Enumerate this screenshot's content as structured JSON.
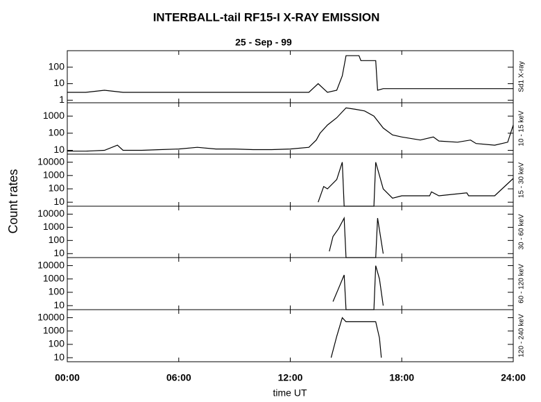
{
  "chart_data": [
    {
      "type": "line",
      "title": "INTERBALL-tail  RF15-I   X-RAY  EMISSION",
      "subtitle": "25 - Sep - 99",
      "ylabel": "Count  rates",
      "panel_label": "Sd1  X-ray",
      "log_scale": true,
      "color": "#000000",
      "xlim": [
        0,
        24
      ],
      "ylim": [
        0.7,
        1000
      ],
      "yticks": [
        1,
        10,
        100
      ],
      "x": [
        0,
        1,
        2,
        3,
        4,
        5,
        6,
        7,
        8,
        9,
        10,
        11,
        12,
        13,
        13.5,
        14,
        14.5,
        14.8,
        15.0,
        15.7,
        15.8,
        16.6,
        16.7,
        17,
        18,
        19,
        20,
        21,
        22,
        23,
        24
      ],
      "values": [
        3,
        3,
        4,
        3,
        3,
        3,
        3,
        3,
        3,
        3,
        3,
        3,
        3,
        3,
        10,
        3,
        4,
        30,
        500,
        500,
        250,
        250,
        4,
        5,
        5,
        5,
        5,
        5,
        5,
        5,
        5
      ]
    },
    {
      "type": "line",
      "panel_label": "10 - 15 keV",
      "log_scale": true,
      "color": "#000000",
      "xlim": [
        0,
        24
      ],
      "ylim": [
        6,
        6000
      ],
      "yticks": [
        10,
        100,
        1000
      ],
      "x": [
        0,
        1,
        2,
        2.7,
        3,
        4,
        5,
        6,
        7,
        8,
        9,
        10,
        11,
        12,
        13,
        13.4,
        13.6,
        14,
        14.5,
        15,
        15.5,
        16,
        16.5,
        17,
        17.5,
        18,
        19,
        19.7,
        20,
        21,
        21.7,
        22,
        23,
        23.7,
        24
      ],
      "values": [
        9,
        9,
        10,
        20,
        10,
        10,
        11,
        12,
        15,
        12,
        12,
        11,
        11,
        12,
        15,
        40,
        100,
        300,
        800,
        3000,
        2500,
        2000,
        1000,
        200,
        80,
        60,
        40,
        60,
        35,
        30,
        40,
        25,
        20,
        30,
        300
      ]
    },
    {
      "type": "line",
      "panel_label": "15 - 30 keV",
      "log_scale": true,
      "color": "#000000",
      "xlim": [
        0,
        24
      ],
      "ylim": [
        5,
        40000
      ],
      "yticks": [
        10,
        100,
        1000,
        10000
      ],
      "x": [
        13.5,
        13.8,
        14,
        14.5,
        14.8,
        14.9,
        16.5,
        16.6,
        17,
        17.5,
        18,
        19.5,
        19.6,
        20,
        21.5,
        21.6,
        23,
        24
      ],
      "values": [
        10,
        150,
        100,
        500,
        10000,
        5,
        5,
        10000,
        100,
        20,
        30,
        30,
        60,
        30,
        50,
        30,
        30,
        600
      ]
    },
    {
      "type": "line",
      "panel_label": "30 - 60 keV",
      "log_scale": true,
      "color": "#000000",
      "xlim": [
        0,
        24
      ],
      "ylim": [
        5,
        40000
      ],
      "yticks": [
        10,
        100,
        1000,
        10000
      ],
      "x": [
        14.1,
        14.3,
        14.6,
        14.9,
        15.0,
        16.6,
        16.7,
        17.0
      ],
      "values": [
        15,
        200,
        800,
        5000,
        5,
        5,
        5000,
        10
      ]
    },
    {
      "type": "line",
      "panel_label": "60 - 120 keV",
      "log_scale": true,
      "color": "#000000",
      "xlim": [
        0,
        24
      ],
      "ylim": [
        5,
        40000
      ],
      "yticks": [
        10,
        100,
        1000,
        10000
      ],
      "x": [
        14.3,
        14.6,
        14.9,
        15.0,
        16.5,
        16.6,
        16.8,
        17.0
      ],
      "values": [
        20,
        200,
        2000,
        5,
        5,
        10000,
        1000,
        10
      ]
    },
    {
      "type": "line",
      "panel_label": "120 - 240 keV",
      "log_scale": true,
      "color": "#000000",
      "xlim": [
        0,
        24
      ],
      "ylim": [
        5,
        40000
      ],
      "yticks": [
        10,
        100,
        1000,
        10000
      ],
      "x": [
        14.2,
        14.5,
        14.8,
        15.0,
        16.6,
        16.8,
        16.9
      ],
      "values": [
        10,
        400,
        10000,
        5000,
        5000,
        300,
        10
      ],
      "xlabel": "time UT",
      "xticks": [
        {
          "value": 0,
          "label": "00:00"
        },
        {
          "value": 6,
          "label": "06:00"
        },
        {
          "value": 12,
          "label": "12:00"
        },
        {
          "value": 18,
          "label": "18:00"
        },
        {
          "value": 24,
          "label": "24:00"
        }
      ]
    }
  ]
}
